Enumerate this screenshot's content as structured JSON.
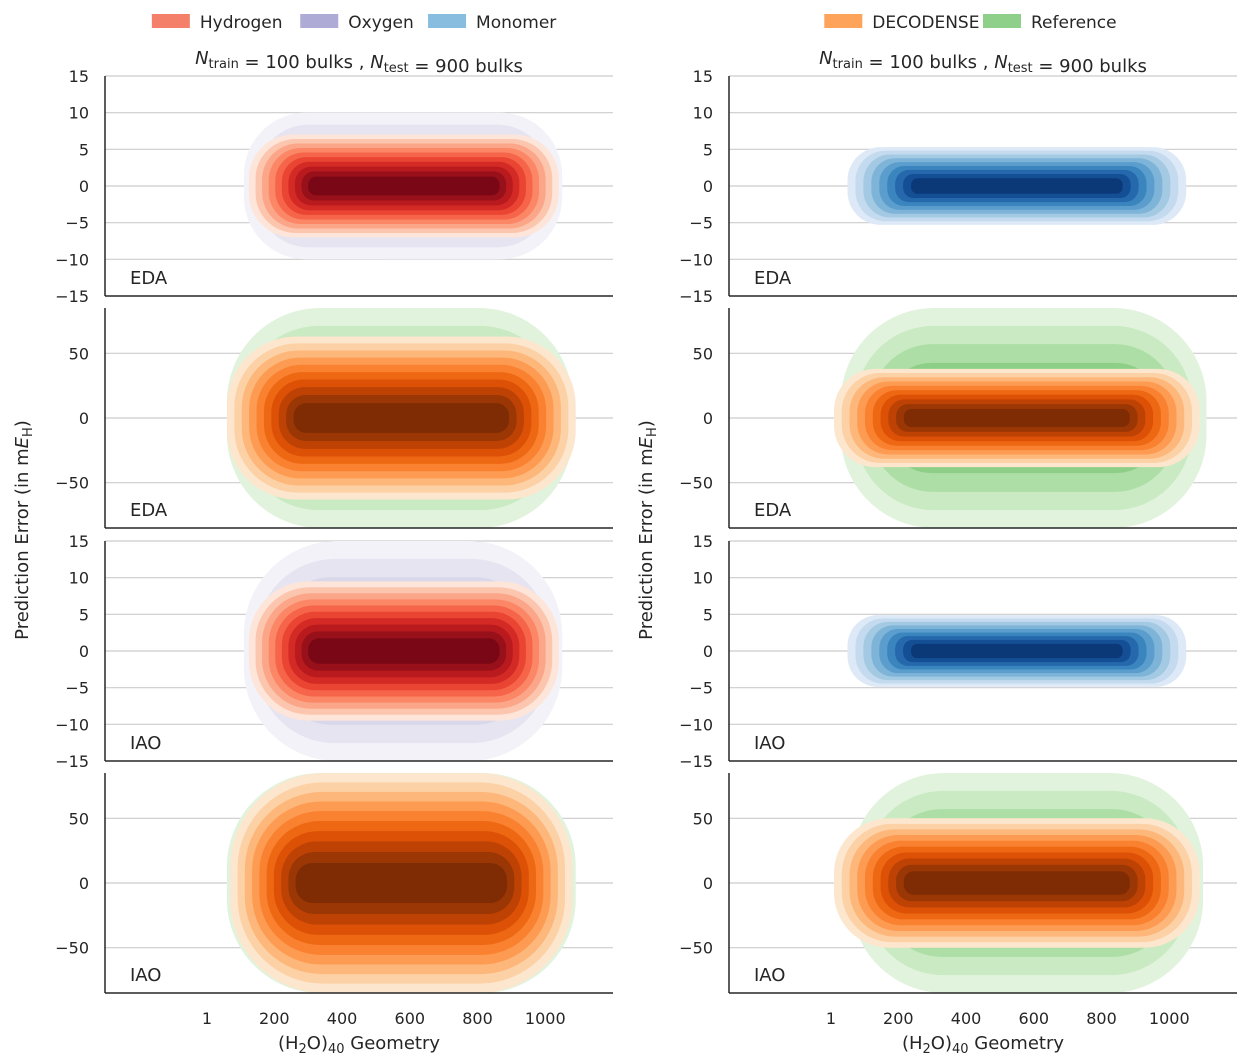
{
  "chart_data": {
    "type": "density_contour",
    "figure": {
      "ylabel": "Prediction Error (in m",
      "ylabel_sym": "E",
      "ylabel_sub": "H",
      "ylabel_end": ")",
      "xlabel_pre": "(H",
      "xlabel_sub1": "2",
      "xlabel_mid": "O)",
      "xlabel_sub2": "40",
      "xlabel_post": " Geometry",
      "x_ticks": [
        "1",
        "200",
        "400",
        "600",
        "800",
        "1000"
      ],
      "x_tick_values": [
        1,
        200,
        400,
        600,
        800,
        1000
      ],
      "xlim": [
        -300,
        1200
      ]
    },
    "columns": [
      {
        "legend": [
          {
            "name": "Hydrogen",
            "color": "#f4806a"
          },
          {
            "name": "Oxygen",
            "color": "#aeabd6"
          },
          {
            "name": "Monomer",
            "color": "#88bde0"
          }
        ],
        "subtitle": {
          "n1": "N",
          "s1": "train",
          "t1": " = 100 bulks , ",
          "n2": "N",
          "s2": "test",
          "t2": " = 900 bulks"
        },
        "panels": [
          {
            "label": "EDA",
            "ylim": [
              -15,
              15
            ],
            "yticks": [
              15,
              10,
              5,
              0,
              -5,
              -10,
              -15
            ],
            "ytick_labels": [
              "15",
              "10",
              "5",
              "0",
              "−5",
              "−10",
              "−15"
            ],
            "layers": [
              {
                "cmap": "purples",
                "x": [
                  110,
                  1050
                ],
                "y_half": 10.0
              },
              {
                "cmap": "reds",
                "x": [
                  125,
                  1040
                ],
                "y_half": 7.0
              }
            ]
          },
          {
            "label": "EDA",
            "ylim": [
              -85,
              85
            ],
            "yticks": [
              50,
              0,
              -50
            ],
            "ytick_labels": [
              "50",
              "0",
              "−50"
            ],
            "layers": [
              {
                "cmap": "greens",
                "x": [
                  60,
                  1080
                ],
                "y_half": 85
              },
              {
                "cmap": "oranges",
                "x": [
                  60,
                  1090
                ],
                "y_half": 63
              }
            ]
          },
          {
            "label": "IAO",
            "ylim": [
              -15,
              15
            ],
            "yticks": [
              15,
              10,
              5,
              0,
              -5,
              -10,
              -15
            ],
            "ytick_labels": [
              "15",
              "10",
              "5",
              "0",
              "−5",
              "−10",
              "−15"
            ],
            "layers": [
              {
                "cmap": "purples",
                "x": [
                  110,
                  1050
                ],
                "y_half": 15.0
              },
              {
                "cmap": "reds",
                "x": [
                  125,
                  1040
                ],
                "y_half": 9.5
              }
            ]
          },
          {
            "label": "IAO",
            "ylim": [
              -85,
              85
            ],
            "yticks": [
              50,
              0,
              -50
            ],
            "ytick_labels": [
              "50",
              "0",
              "−50"
            ],
            "layers": [
              {
                "cmap": "greens",
                "x": [
                  60,
                  1090
                ],
                "y_half": 85
              },
              {
                "cmap": "oranges",
                "x": [
                  70,
                  1080
                ],
                "y_half": 85
              }
            ]
          }
        ]
      },
      {
        "legend": [
          {
            "name": "DECODENSE",
            "color": "#fda35a"
          },
          {
            "name": "Reference",
            "color": "#8ed08a"
          }
        ],
        "subtitle": {
          "n1": "N",
          "s1": "train",
          "t1": " = 100 bulks , ",
          "n2": "N",
          "s2": "test",
          "t2": " = 900 bulks"
        },
        "panels": [
          {
            "label": "EDA",
            "ylim": [
              -15,
              15
            ],
            "yticks": [
              15,
              10,
              5,
              0,
              -5,
              -10,
              -15
            ],
            "ytick_labels": [
              "15",
              "10",
              "5",
              "0",
              "−5",
              "−10",
              "−15"
            ],
            "layers": [
              {
                "cmap": "blues",
                "x": [
                  50,
                  1050
                ],
                "y_half": 5.3
              }
            ]
          },
          {
            "label": "EDA",
            "ylim": [
              -85,
              85
            ],
            "yticks": [
              50,
              0,
              -50
            ],
            "ytick_labels": [
              "50",
              "0",
              "−50"
            ],
            "layers": [
              {
                "cmap": "greens",
                "x": [
                  30,
                  1110
                ],
                "y_half": 85
              },
              {
                "cmap": "oranges",
                "x": [
                  10,
                  1090
                ],
                "y_half": 38
              }
            ]
          },
          {
            "label": "IAO",
            "ylim": [
              -15,
              15
            ],
            "yticks": [
              15,
              10,
              5,
              0,
              -5,
              -10,
              -15
            ],
            "ytick_labels": [
              "15",
              "10",
              "5",
              "0",
              "−5",
              "−10",
              "−15"
            ],
            "layers": [
              {
                "cmap": "blues",
                "x": [
                  50,
                  1050
                ],
                "y_half": 4.9
              }
            ]
          },
          {
            "label": "IAO",
            "ylim": [
              -85,
              85
            ],
            "yticks": [
              50,
              0,
              -50
            ],
            "ytick_labels": [
              "50",
              "0",
              "−50"
            ],
            "layers": [
              {
                "cmap": "greens",
                "x": [
                  60,
                  1100
                ],
                "y_half": 85
              },
              {
                "cmap": "oranges",
                "x": [
                  10,
                  1090
                ],
                "y_half": 50
              }
            ]
          }
        ]
      }
    ],
    "colormaps": {
      "reds": [
        "#fee5d9",
        "#fcc5ae",
        "#fca689",
        "#fb8767",
        "#f6654a",
        "#ea4532",
        "#d42a26",
        "#b91a1e",
        "#98101a",
        "#7a0715"
      ],
      "purples": [
        "#f3f2f8",
        "#e6e4f1",
        "#d9d8ea",
        "#c8c7e2",
        "#b7b4d9"
      ],
      "blues": [
        "#dde9f6",
        "#c4daee",
        "#a3c9e3",
        "#7fb4d9",
        "#5b9ecd",
        "#3b85bf",
        "#2568ac",
        "#144f95",
        "#0b3978"
      ],
      "greens": [
        "#e1f3dc",
        "#c9eac2",
        "#addea6",
        "#8ecf87",
        "#6cbf6d"
      ],
      "oranges": [
        "#fde6ce",
        "#fdd1a6",
        "#fdb77a",
        "#fd9b52",
        "#f98130",
        "#ee6813",
        "#dd5107",
        "#bf4205",
        "#9b3705",
        "#7f2c05"
      ]
    }
  }
}
